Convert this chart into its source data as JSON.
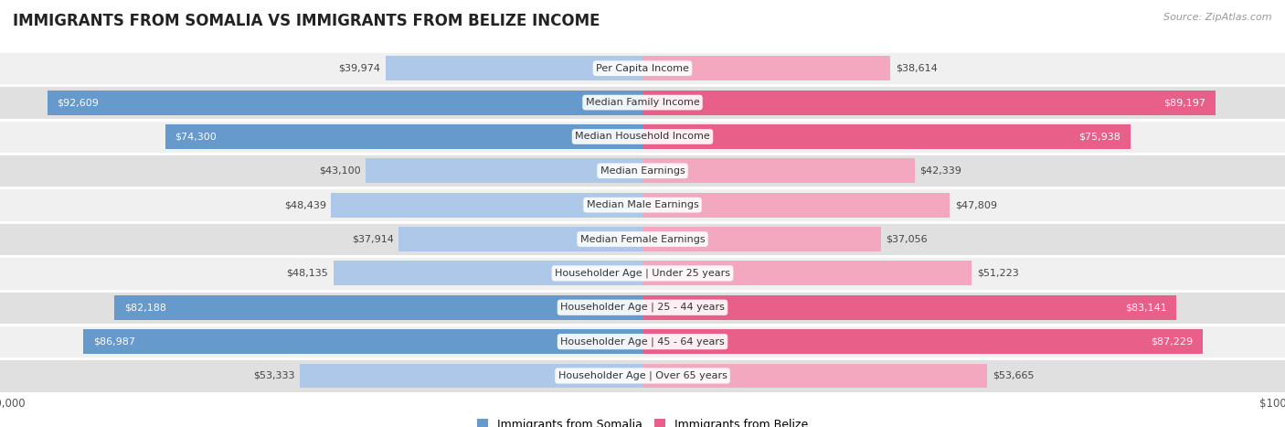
{
  "title": "IMMIGRANTS FROM SOMALIA VS IMMIGRANTS FROM BELIZE INCOME",
  "source": "Source: ZipAtlas.com",
  "categories": [
    "Per Capita Income",
    "Median Family Income",
    "Median Household Income",
    "Median Earnings",
    "Median Male Earnings",
    "Median Female Earnings",
    "Householder Age | Under 25 years",
    "Householder Age | 25 - 44 years",
    "Householder Age | 45 - 64 years",
    "Householder Age | Over 65 years"
  ],
  "somalia_values": [
    39974,
    92609,
    74300,
    43100,
    48439,
    37914,
    48135,
    82188,
    86987,
    53333
  ],
  "belize_values": [
    38614,
    89197,
    75938,
    42339,
    47809,
    37056,
    51223,
    83141,
    87229,
    53665
  ],
  "somalia_labels": [
    "$39,974",
    "$92,609",
    "$74,300",
    "$43,100",
    "$48,439",
    "$37,914",
    "$48,135",
    "$82,188",
    "$86,987",
    "$53,333"
  ],
  "belize_labels": [
    "$38,614",
    "$89,197",
    "$75,938",
    "$42,339",
    "$47,809",
    "$37,056",
    "$51,223",
    "$83,141",
    "$87,229",
    "$53,665"
  ],
  "somalia_color_dark": "#6699cc",
  "somalia_color_light": "#adc8e8",
  "belize_color_dark": "#e8608a",
  "belize_color_light": "#f4a8c0",
  "max_value": 100000,
  "row_bg_odd": "#f0f0f0",
  "row_bg_even": "#e0e0e0",
  "label_inside_threshold": 60000,
  "legend_somalia": "Immigrants from Somalia",
  "legend_belize": "Immigrants from Belize",
  "title_fontsize": 12,
  "source_fontsize": 8,
  "label_fontsize": 8,
  "cat_fontsize": 8
}
